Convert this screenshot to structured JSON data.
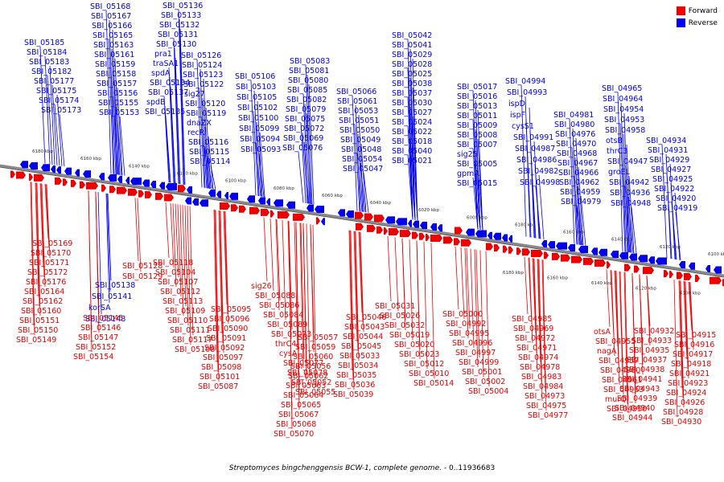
{
  "legend": {
    "forward_label": "Forward",
    "reverse_label": "Reverse"
  },
  "colors": {
    "forward": "#ee0000",
    "reverse": "#0000ee",
    "axis": "#888888"
  },
  "caption": {
    "organism": "Streptomyces bingchenggensis BCW-1, complete genome.",
    "range": " - 0..11936683"
  },
  "ticks_top": [
    "6180 kbp",
    "6160 kbp",
    "6140 kbp",
    "6120 kbp",
    "6100 kbp",
    "6080 kbp",
    "6060 kbp",
    "6040 kbp",
    "6020 kbp",
    "6000 kbp",
    "6180 kbp",
    "6160 kbp",
    "6140 kbp",
    "6120 kbp",
    "6100 kbp"
  ],
  "ticks_bottom": [
    "6180 kbp",
    "6160 kbp",
    "6140 kbp",
    "6120 kbp",
    "6100 kbp"
  ],
  "reverse_labels": [
    "SBI_05185",
    "SBI_05184",
    "SBI_05183",
    "SBI_05182",
    "SBI_05177",
    "SBI_05175",
    "SBI_05174",
    "SBI_05173",
    "SBI_05168",
    "SBI_05167",
    "SBI_05166",
    "SBI_05165",
    "SBI_05163",
    "SBI_05161",
    "SBI_05159",
    "SBI_05158",
    "SBI_05157",
    "SBI_05156",
    "SBI_05155",
    "SBI_05153",
    "SBI_05136",
    "SBI_05133",
    "SBI_05132",
    "SBI_05131",
    "SBI_05130",
    "pra1",
    "traSA1",
    "spdA",
    "SBI_05134",
    "SBI_05137",
    "spdB",
    "SBI_05135",
    "SBI_05126",
    "SBI_05124",
    "SBI_05123",
    "SBI_05122",
    "sig27",
    "SBI_05120",
    "SBI_05119",
    "dnaZX",
    "recR",
    "SBI_05116",
    "SBI_05115",
    "SBI_05114",
    "SBI_05106",
    "SBI_05103",
    "SBI_05105",
    "SBI_05102",
    "SBI_05100",
    "SBI_05099",
    "SBI_05094",
    "SBI_05093",
    "SBI_05083",
    "SBI_05081",
    "SBI_05080",
    "SBI_05085",
    "SBI_05082",
    "SBI_05079",
    "SBI_05075",
    "SBI_05072",
    "SBI_05069",
    "SBI_05076",
    "SBI_05066",
    "SBI_05061",
    "SBI_05053",
    "SBI_05051",
    "SBI_05050",
    "SBI_05049",
    "SBI_05048",
    "SBI_05054",
    "SBI_05047",
    "SBI_05042",
    "SBI_05041",
    "SBI_05029",
    "SBI_05028",
    "SBI_05025",
    "SBI_05038",
    "SBI_05037",
    "SBI_05030",
    "SBI_05027",
    "SBI_05024",
    "SBI_05022",
    "SBI_05018",
    "SBI_05040",
    "SBI_05021",
    "SBI_05017",
    "SBI_05016",
    "SBI_05013",
    "SBI_05011",
    "SBI_05009",
    "SBI_05008",
    "SBI_05007",
    "sig25",
    "SBI_05005",
    "gpmA",
    "SBI_05015",
    "SBI_04994",
    "SBI_04993",
    "ispD",
    "ispF",
    "cysS1",
    "SBI_04991",
    "SBI_04987",
    "SBI_04986",
    "SBI_04982",
    "SBI_04998",
    "SBI_04981",
    "SBI_04980",
    "SBI_04976",
    "SBI_04970",
    "SBI_04968",
    "SBI_04967",
    "SBI_04966",
    "SBI_04962",
    "SBI_04959",
    "SBI_04979",
    "SBI_04965",
    "SBI_04964",
    "SBI_04954",
    "SBI_04953",
    "SBI_04958",
    "otsB",
    "thrC3",
    "SBI_04947",
    "groEL",
    "SBI_04942",
    "SBI_04936",
    "SBI_04948",
    "SBI_04934",
    "SBI_04931",
    "SBI_04929",
    "SBI_04927",
    "SBI_04925",
    "SBI_04922",
    "SBI_04920",
    "SBI_04919",
    "SBI_05138",
    "SBI_05141",
    "korSA",
    "SBI_05148"
  ],
  "forward_labels": [
    "SBI_05169",
    "SBI_05170",
    "SBI_05171",
    "SBI_05172",
    "SBI_05176",
    "SBI_05164",
    "SBI_05162",
    "SBI_05160",
    "SBI_05151",
    "SBI_05150",
    "SBI_05149",
    "SBI_05145",
    "SBI_05146",
    "SBI_05147",
    "SBI_05152",
    "SBI_05154",
    "SBI_05128",
    "SBI_05129",
    "SBI_05118",
    "SBI_05104",
    "SBI_05107",
    "SBI_05112",
    "SBI_05113",
    "SBI_05109",
    "SBI_05110",
    "SBI_05111",
    "SBI_05117",
    "SBI_05108",
    "SBI_05095",
    "SBI_05096",
    "SBI_05090",
    "SBI_05091",
    "SBI_05092",
    "SBI_05097",
    "SBI_05098",
    "SBI_05101",
    "SBI_05087",
    "sig26",
    "SBI_05088",
    "SBI_05086",
    "SBI_05084",
    "SBI_05089",
    "SBI_05073",
    "thrC4",
    "cysA",
    "SBI_05077",
    "SBI_05078",
    "SBI_05052",
    "SBI_05055",
    "SBI_05057",
    "SBI_05059",
    "SBI_05060",
    "SBI_05056",
    "SBI_05062",
    "SBI_05063",
    "SBI_05064",
    "SBI_05065",
    "SBI_05067",
    "SBI_05068",
    "SBI_05070",
    "SBI_05046",
    "SBI_05043",
    "SBI_05044",
    "SBI_05045",
    "SBI_05033",
    "SBI_05034",
    "SBI_05035",
    "SBI_05036",
    "SBI_05039",
    "SBI_05031",
    "SBI_05026",
    "SBI_05032",
    "SBI_05019",
    "SBI_05020",
    "SBI_05023",
    "SBI_05012",
    "SBI_05010",
    "SBI_05014",
    "SBI_05000",
    "SBI_04992",
    "SBI_04995",
    "SBI_04996",
    "SBI_04997",
    "SBI_04999",
    "SBI_05001",
    "SBI_05002",
    "SBI_05004",
    "SBI_04985",
    "SBI_04969",
    "SBI_04972",
    "SBI_04971",
    "SBI_04974",
    "SBI_04978",
    "SBI_04983",
    "SBI_04984",
    "SBI_04973",
    "SBI_04975",
    "SBI_04977",
    "otsA",
    "SBI_04955",
    "nagA",
    "SBI_04957",
    "SBI_04960",
    "SBI_04961",
    "SBI_04963",
    "murQ",
    "SBI_04950",
    "SBI_04932",
    "SBI_04933",
    "SBI_04935",
    "SBI_04937",
    "SBI_04938",
    "SBI_04941",
    "SBI_04943",
    "SBI_04939",
    "SBI_04940",
    "SBI_04944",
    "SBI_04915",
    "SBI_04916",
    "SBI_04917",
    "SBI_04918",
    "SBI_04921",
    "SBI_04923",
    "SBI_04924",
    "SBI_04926",
    "SBI_04928",
    "SBI_04930"
  ]
}
